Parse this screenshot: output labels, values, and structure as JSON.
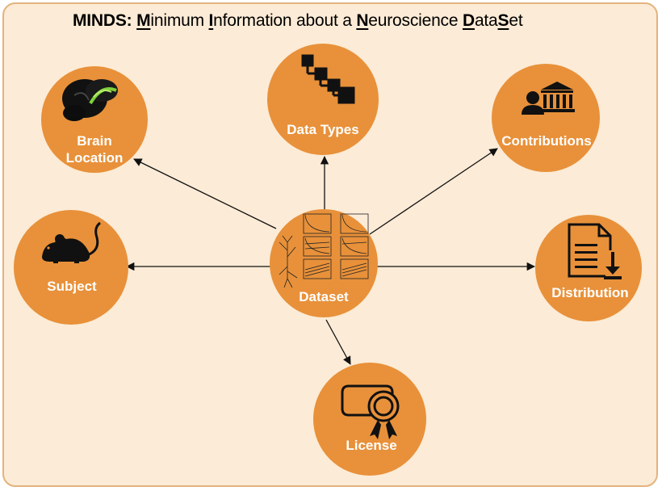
{
  "title": {
    "prefix": "MINDS:",
    "parts": [
      {
        "u": "M",
        "t": "inimum "
      },
      {
        "u": "I",
        "t": "nformation about a "
      },
      {
        "u": "N",
        "t": "euroscience "
      },
      {
        "u": "D",
        "t": "ata"
      },
      {
        "u": "S",
        "t": "et"
      }
    ]
  },
  "colors": {
    "node_fill": "#e8913a",
    "panel_bg": "#fcebd6",
    "panel_border": "#e3b37e",
    "arrow": "#111111"
  },
  "nodes": {
    "dataset": {
      "label": "Dataset",
      "icon": "dataset-plots-icon"
    },
    "brain_location": {
      "label_line1": "Brain",
      "label_line2": "Location",
      "icon": "brain-icon"
    },
    "data_types": {
      "label": "Data Types",
      "icon": "hierarchy-squares-icon"
    },
    "contributions": {
      "label": "Contributions",
      "icon": "person-institution-icon"
    },
    "subject": {
      "label": "Subject",
      "icon": "mouse-icon"
    },
    "distribution": {
      "label": "Distribution",
      "icon": "document-download-icon"
    },
    "license": {
      "label": "License",
      "icon": "certificate-icon"
    }
  }
}
